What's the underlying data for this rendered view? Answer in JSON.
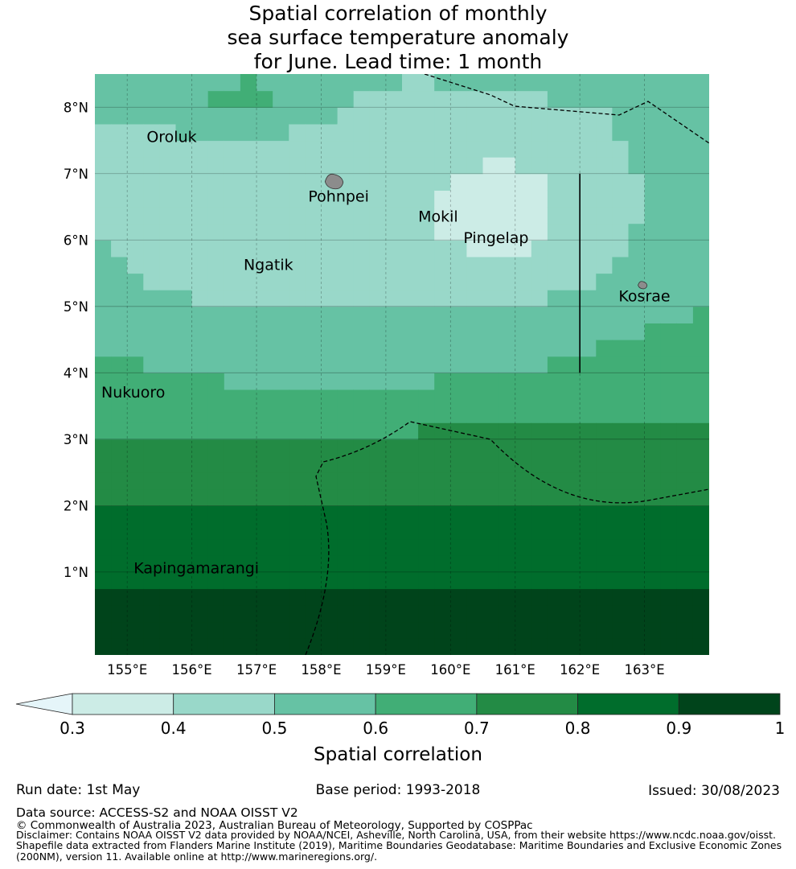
{
  "title": {
    "line1": "Spatial correlation of monthly",
    "line2": "sea surface temperature anomaly",
    "line3": "for June. Lead time: 1 month"
  },
  "map": {
    "lon_range": [
      154.5,
      164.0
    ],
    "lat_range": [
      -0.25,
      8.5
    ],
    "x_ticks": [
      {
        "lon": 155,
        "label": "155°E"
      },
      {
        "lon": 156,
        "label": "156°E"
      },
      {
        "lon": 157,
        "label": "157°E"
      },
      {
        "lon": 158,
        "label": "158°E"
      },
      {
        "lon": 159,
        "label": "159°E"
      },
      {
        "lon": 160,
        "label": "160°E"
      },
      {
        "lon": 161,
        "label": "161°E"
      },
      {
        "lon": 162,
        "label": "162°E"
      },
      {
        "lon": 163,
        "label": "163°E"
      }
    ],
    "y_ticks": [
      {
        "lat": 8,
        "label": "8°N"
      },
      {
        "lat": 7,
        "label": "7°N"
      },
      {
        "lat": 6,
        "label": "6°N"
      },
      {
        "lat": 5,
        "label": "5°N"
      },
      {
        "lat": 4,
        "label": "4°N"
      },
      {
        "lat": 3,
        "label": "3°N"
      },
      {
        "lat": 2,
        "label": "2°N"
      },
      {
        "lat": 1,
        "label": "1°N"
      }
    ],
    "places": [
      {
        "name": "Oroluk",
        "lon": 155.3,
        "lat": 7.55
      },
      {
        "name": "Pohnpei",
        "lon": 157.8,
        "lat": 6.65
      },
      {
        "name": "Mokil",
        "lon": 159.5,
        "lat": 6.35
      },
      {
        "name": "Pingelap",
        "lon": 160.2,
        "lat": 6.03
      },
      {
        "name": "Ngatik",
        "lon": 156.8,
        "lat": 5.62
      },
      {
        "name": "Kosrae",
        "lon": 162.6,
        "lat": 5.15
      },
      {
        "name": "Nukuoro",
        "lon": 154.6,
        "lat": 3.7
      },
      {
        "name": "Kapingamarangi",
        "lon": 155.1,
        "lat": 1.05
      }
    ],
    "islands": [
      {
        "name": "pohnpei-island",
        "lon": 158.2,
        "lat": 6.88,
        "size": 1.6
      },
      {
        "name": "kosrae-island",
        "lon": 162.97,
        "lat": 5.32,
        "size": 0.8
      }
    ],
    "dividing_line": {
      "lon": 162.0,
      "lat_start": 4.0,
      "lat_end": 7.0
    }
  },
  "colorbar": {
    "bounds": [
      "0.3",
      "0.4",
      "0.5",
      "0.6",
      "0.7",
      "0.8",
      "0.9",
      "1"
    ],
    "colors": [
      "#e5f5f9",
      "#ccece6",
      "#99d8c9",
      "#66c2a4",
      "#41ae76",
      "#238b45",
      "#006d2c",
      "#00441b"
    ],
    "label": "Spatial correlation"
  },
  "footer": {
    "run_date": "Run date: 1st May",
    "base_period": "Base period: 1993-2018",
    "issued": "Issued: 30/08/2023",
    "data_source": "Data source: ACCESS-S2 and NOAA OISST V2",
    "copyright": "© Commonwealth of Australia 2023, Australian Bureau of Meteorology, Supported by COSPPac",
    "disclaimer1": "Disclaimer: Contains NOAA OISST V2 data provided by NOAA/NCEI, Asheville, North Carolina, USA, from their website https://www.ncdc.noaa.gov/oisst.",
    "disclaimer2": "Shapefile data extracted from Flanders Marine Institute (2019), Maritime Boundaries Geodatabase: Maritime Boundaries and Exclusive Economic Zones",
    "disclaimer3": "(200NM), version 11. Available online at http://www.marineregions.org/."
  }
}
